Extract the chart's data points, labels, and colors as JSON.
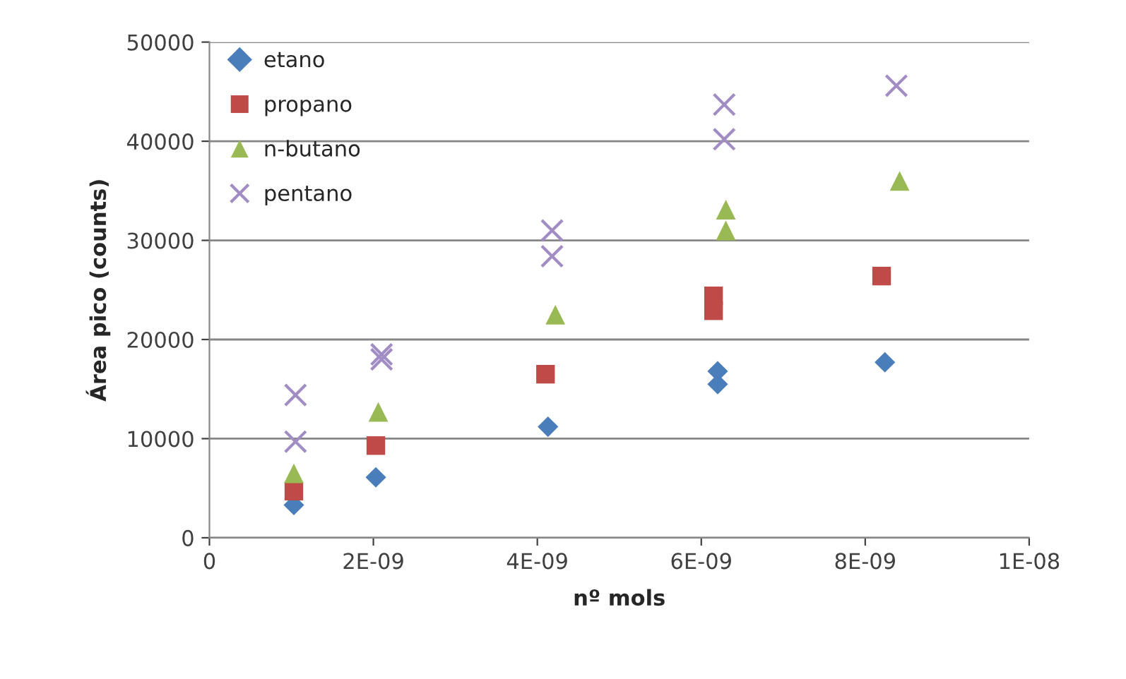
{
  "chart_data": {
    "type": "scatter",
    "xlabel": "nº mols",
    "ylabel": "Área pico (counts)",
    "xlim": [
      0,
      1e-08
    ],
    "xticks": [
      {
        "value": 0,
        "label": "0"
      },
      {
        "value": 2e-09,
        "label": "2E-09"
      },
      {
        "value": 4e-09,
        "label": "4E-09"
      },
      {
        "value": 6e-09,
        "label": "6E-09"
      },
      {
        "value": 8e-09,
        "label": "8E-09"
      },
      {
        "value": 1e-08,
        "label": "1E-08"
      }
    ],
    "ylim": [
      0,
      50000
    ],
    "yticks": [
      0,
      10000,
      20000,
      30000,
      40000,
      50000
    ],
    "grid": "y",
    "legend": "top left",
    "series": [
      {
        "name": "etano",
        "color": "#4a7ebb",
        "marker": "diamond",
        "x": [
          1.03e-09,
          2.03e-09,
          4.13e-09,
          6.2e-09,
          6.2e-09,
          8.24e-09
        ],
        "values": [
          3300,
          6100,
          11200,
          16800,
          15500,
          17700
        ]
      },
      {
        "name": "propano",
        "color": "#be4b48",
        "marker": "square",
        "x": [
          1.03e-09,
          2.03e-09,
          4.1e-09,
          6.15e-09,
          6.15e-09,
          8.2e-09
        ],
        "values": [
          4700,
          9300,
          16500,
          24400,
          22900,
          26400
        ]
      },
      {
        "name": "n-butano",
        "color": "#98b954",
        "marker": "triangle",
        "x": [
          1.03e-09,
          2.06e-09,
          4.22e-09,
          6.3e-09,
          6.3e-09,
          8.42e-09
        ],
        "values": [
          6500,
          12700,
          22500,
          33100,
          31000,
          36000
        ]
      },
      {
        "name": "pentano",
        "color": "#a28cc4",
        "marker": "cross",
        "x": [
          1.05e-09,
          1.05e-09,
          2.1e-09,
          2.1e-09,
          4.18e-09,
          4.18e-09,
          6.28e-09,
          6.28e-09,
          8.38e-09
        ],
        "values": [
          14400,
          9700,
          18000,
          18500,
          31000,
          28400,
          43700,
          40200,
          45600
        ]
      }
    ]
  }
}
